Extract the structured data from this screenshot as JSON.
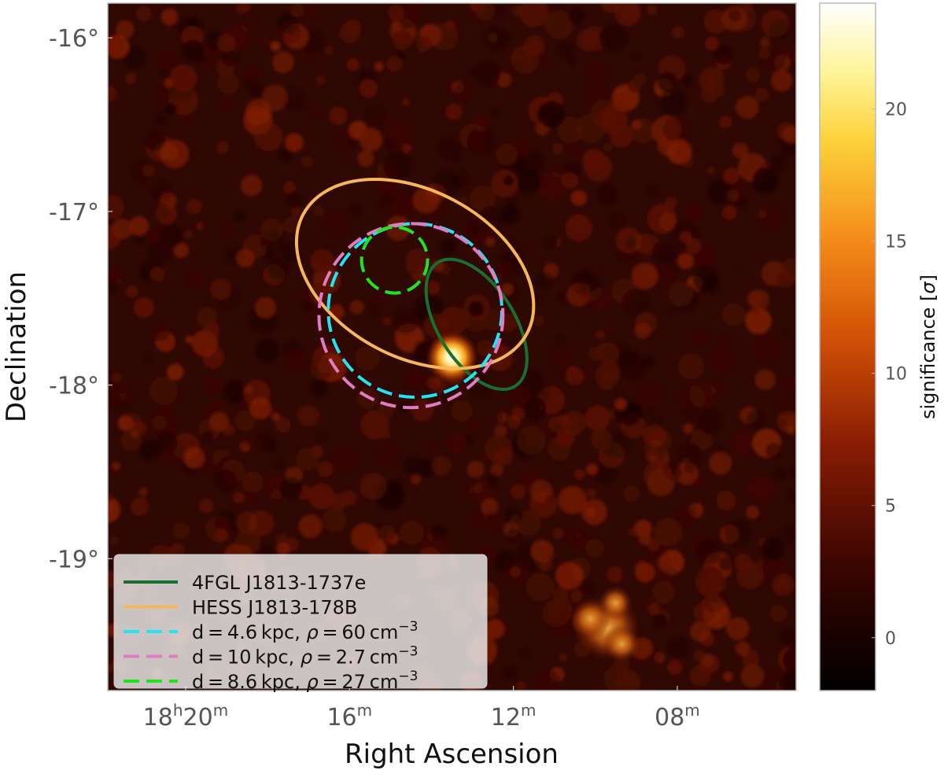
{
  "chart_data": {
    "type": "heatmap",
    "xlabel": "Right Ascension",
    "ylabel": "Declination",
    "colorbar_label": "significance [σ]",
    "colorbar_label_html": "significance [<tspan font-style=\"italic\">σ</tspan>]",
    "colormap": "afmhot",
    "x_ticks": [
      {
        "ra_min": 1220,
        "label_main": "18",
        "label_sup1": "h",
        "label_mid": "20",
        "label_sup2": "m"
      },
      {
        "ra_min": 1216,
        "label_main": "16",
        "label_sup1": "m"
      },
      {
        "ra_min": 1212,
        "label_main": "12",
        "label_sup1": "m"
      },
      {
        "ra_min": 1208,
        "label_main": "08",
        "label_sup1": "m"
      }
    ],
    "xlim_ra_min": [
      1221.9,
      1205.1
    ],
    "y_ticks": [
      {
        "value": -16,
        "label": "-16°"
      },
      {
        "value": -17,
        "label": "-17°"
      },
      {
        "value": -18,
        "label": "-18°"
      },
      {
        "value": -19,
        "label": "-19°"
      }
    ],
    "ylim_deg": [
      -19.76,
      -15.8
    ],
    "colorbar_ticks": [
      {
        "value": 0,
        "label": "0"
      },
      {
        "value": 5,
        "label": "5"
      },
      {
        "value": 10,
        "label": "10"
      },
      {
        "value": 15,
        "label": "15"
      },
      {
        "value": 20,
        "label": "20"
      }
    ],
    "colorbar_range": [
      -2,
      24
    ],
    "bright_source": {
      "ra_min": 1213.5,
      "dec": -17.84,
      "peak_sigma": 23
    },
    "secondary_source": {
      "ra_min": 1209.7,
      "dec": -19.4,
      "peak_sigma": 12
    },
    "regions": [
      {
        "name": "4FGL J1813-1737e",
        "shape": "ellipse",
        "color": "#1a6e2e",
        "dash": "solid",
        "center_ra_min": 1212.9,
        "center_dec": -17.65,
        "semi_major_deg": 0.42,
        "semi_minor_deg": 0.22,
        "angle_deg": 58
      },
      {
        "name": "HESS J1813-178B",
        "shape": "ellipse",
        "color": "#f6b75b",
        "dash": "solid",
        "center_ra_min": 1214.4,
        "center_dec": -17.36,
        "semi_major_deg": 0.73,
        "semi_minor_deg": 0.48,
        "angle_deg": 28
      },
      {
        "name": "d = 4.6 kpc, ρ = 60 cm⁻³",
        "shape": "circle",
        "color": "#22e4f5",
        "dash": "dashed",
        "center_ra_min": 1214.4,
        "center_dec": -17.57,
        "radius_deg": 0.5
      },
      {
        "name": "d = 10 kpc, ρ = 2.7 cm⁻³",
        "shape": "circle",
        "color": "#e07cc3",
        "dash": "dashed",
        "center_ra_min": 1214.5,
        "center_dec": -17.6,
        "radius_deg": 0.53
      },
      {
        "name": "d = 8.6 kpc, ρ = 27 cm⁻³",
        "shape": "circle",
        "color": "#22e41c",
        "dash": "dashed",
        "center_ra_min": 1214.9,
        "center_dec": -17.28,
        "radius_deg": 0.19
      }
    ]
  },
  "legend": {
    "placement": "lower-left",
    "entries": [
      {
        "color": "#1a6e2e",
        "dashed": false,
        "text": "4FGL J1813-1737e",
        "math": false
      },
      {
        "color": "#f6b75b",
        "dashed": false,
        "text": "HESS J1813-178B",
        "math": false
      },
      {
        "color": "#22e4f5",
        "dashed": true,
        "math": true,
        "d": "4.6",
        "rho": "60",
        "unit_exp": "−3"
      },
      {
        "color": "#e07cc3",
        "dashed": true,
        "math": true,
        "d": "10",
        "rho": "2.7",
        "unit_exp": "−3"
      },
      {
        "color": "#22e41c",
        "dashed": true,
        "math": true,
        "d": "8.6",
        "rho": "27",
        "unit_exp": "−3"
      }
    ]
  }
}
